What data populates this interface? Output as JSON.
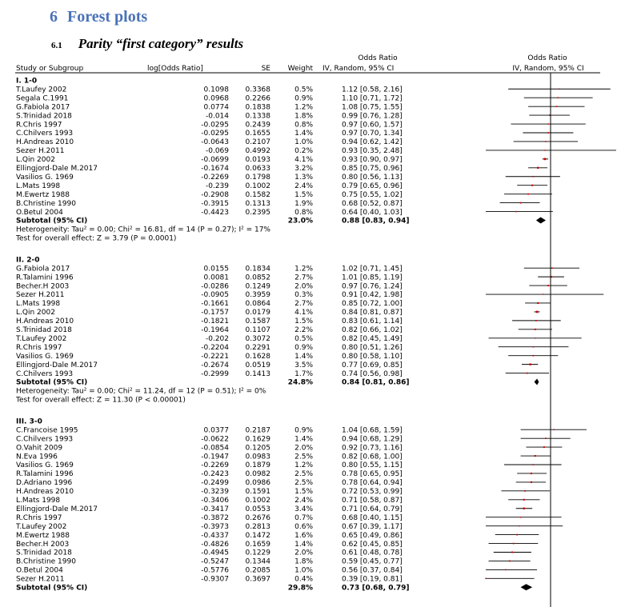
{
  "heading": {
    "number": "6",
    "title": "Forest plots"
  },
  "subheading": {
    "number": "6.1",
    "title": "Parity “first category” results"
  },
  "chart_data": {
    "type": "forest",
    "columns": {
      "study": "Study or Subgroup",
      "logor": "log[Odds Ratio]",
      "se": "SE",
      "weight": "Weight",
      "or_title": "Odds Ratio",
      "or_sub": "IV, Random, 95% CI",
      "plot_title": "Odds Ratio",
      "plot_sub": "IV, Random, 95% CI"
    },
    "groups": [
      {
        "label": "I. 1-0",
        "rows": [
          {
            "study": "T.Laufey 2002",
            "logor": "0.1098",
            "se": "0.3368",
            "weight": "0.5%",
            "ci": "1.12 [0.58, 2.16]",
            "or": 1.12,
            "lo": 0.58,
            "hi": 2.16
          },
          {
            "study": "Segala C.1991",
            "logor": "0.0968",
            "se": "0.2266",
            "weight": "0.9%",
            "ci": "1.10 [0.71, 1.72]",
            "or": 1.1,
            "lo": 0.71,
            "hi": 1.72
          },
          {
            "study": "G.Fabiola 2017",
            "logor": "0.0774",
            "se": "0.1838",
            "weight": "1.2%",
            "ci": "1.08 [0.75, 1.55]",
            "or": 1.08,
            "lo": 0.75,
            "hi": 1.55
          },
          {
            "study": "S.Trinidad 2018",
            "logor": "-0.014",
            "se": "0.1338",
            "weight": "1.8%",
            "ci": "0.99 [0.76, 1.28]",
            "or": 0.99,
            "lo": 0.76,
            "hi": 1.28
          },
          {
            "study": "R.Chris 1997",
            "logor": "-0.0295",
            "se": "0.2439",
            "weight": "0.8%",
            "ci": "0.97 [0.60, 1.57]",
            "or": 0.97,
            "lo": 0.6,
            "hi": 1.57
          },
          {
            "study": "C.Chilvers 1993",
            "logor": "-0.0295",
            "se": "0.1655",
            "weight": "1.4%",
            "ci": "0.97 [0.70, 1.34]",
            "or": 0.97,
            "lo": 0.7,
            "hi": 1.34
          },
          {
            "study": "H.Andreas 2010",
            "logor": "-0.0643",
            "se": "0.2107",
            "weight": "1.0%",
            "ci": "0.94 [0.62, 1.42]",
            "or": 0.94,
            "lo": 0.62,
            "hi": 1.42
          },
          {
            "study": "Sezer H.2011",
            "logor": "-0.069",
            "se": "0.4992",
            "weight": "0.2%",
            "ci": "0.93 [0.35, 2.48]",
            "or": 0.93,
            "lo": 0.35,
            "hi": 2.48
          },
          {
            "study": "L.Qin 2002",
            "logor": "-0.0699",
            "se": "0.0193",
            "weight": "4.1%",
            "ci": "0.93 [0.90, 0.97]",
            "or": 0.93,
            "lo": 0.9,
            "hi": 0.97
          },
          {
            "study": "Ellingjord-Dale M.2017",
            "logor": "-0.1674",
            "se": "0.0633",
            "weight": "3.2%",
            "ci": "0.85 [0.75, 0.96]",
            "or": 0.85,
            "lo": 0.75,
            "hi": 0.96
          },
          {
            "study": "Vasilios G. 1969",
            "logor": "-0.2269",
            "se": "0.1798",
            "weight": "1.3%",
            "ci": "0.80 [0.56, 1.13]",
            "or": 0.8,
            "lo": 0.56,
            "hi": 1.13
          },
          {
            "study": "L.Mats 1998",
            "logor": "-0.239",
            "se": "0.1002",
            "weight": "2.4%",
            "ci": "0.79 [0.65, 0.96]",
            "or": 0.79,
            "lo": 0.65,
            "hi": 0.96
          },
          {
            "study": "M.Ewertz 1988",
            "logor": "-0.2908",
            "se": "0.1582",
            "weight": "1.5%",
            "ci": "0.75 [0.55, 1.02]",
            "or": 0.75,
            "lo": 0.55,
            "hi": 1.02
          },
          {
            "study": "B.Christine 1990",
            "logor": "-0.3915",
            "se": "0.1313",
            "weight": "1.9%",
            "ci": "0.68 [0.52, 0.87]",
            "or": 0.68,
            "lo": 0.52,
            "hi": 0.87
          },
          {
            "study": "O.Betul 2004",
            "logor": "-0.4423",
            "se": "0.2395",
            "weight": "0.8%",
            "ci": "0.64 [0.40, 1.03]",
            "or": 0.64,
            "lo": 0.4,
            "hi": 1.03
          }
        ],
        "subtotal": {
          "label": "Subtotal (95% CI)",
          "weight": "23.0%",
          "ci": "0.88 [0.83, 0.94]",
          "or": 0.88,
          "lo": 0.83,
          "hi": 0.94
        },
        "heterogeneity": "Heterogeneity: Tau² = 0.00; Chi² = 16.81, df = 14 (P = 0.27); I² = 17%",
        "overall": "Test for overall effect: Z = 3.79 (P = 0.0001)"
      },
      {
        "label": "II. 2-0",
        "rows": [
          {
            "study": "G.Fabiola 2017",
            "logor": "0.0155",
            "se": "0.1834",
            "weight": "1.2%",
            "ci": "1.02 [0.71, 1.45]",
            "or": 1.02,
            "lo": 0.71,
            "hi": 1.45
          },
          {
            "study": "R.Talamini 1996",
            "logor": "0.0081",
            "se": "0.0852",
            "weight": "2.7%",
            "ci": "1.01 [0.85, 1.19]",
            "or": 1.01,
            "lo": 0.85,
            "hi": 1.19
          },
          {
            "study": "Becher.H 2003",
            "logor": "-0.0286",
            "se": "0.1249",
            "weight": "2.0%",
            "ci": "0.97 [0.76, 1.24]",
            "or": 0.97,
            "lo": 0.76,
            "hi": 1.24
          },
          {
            "study": "Sezer H.2011",
            "logor": "-0.0905",
            "se": "0.3959",
            "weight": "0.3%",
            "ci": "0.91 [0.42, 1.98]",
            "or": 0.91,
            "lo": 0.42,
            "hi": 1.98
          },
          {
            "study": "L.Mats 1998",
            "logor": "-0.1661",
            "se": "0.0864",
            "weight": "2.7%",
            "ci": "0.85 [0.72, 1.00]",
            "or": 0.85,
            "lo": 0.72,
            "hi": 1.0
          },
          {
            "study": "L.Qin 2002",
            "logor": "-0.1757",
            "se": "0.0179",
            "weight": "4.1%",
            "ci": "0.84 [0.81, 0.87]",
            "or": 0.84,
            "lo": 0.81,
            "hi": 0.87
          },
          {
            "study": "H.Andreas 2010",
            "logor": "-0.1821",
            "se": "0.1587",
            "weight": "1.5%",
            "ci": "0.83 [0.61, 1.14]",
            "or": 0.83,
            "lo": 0.61,
            "hi": 1.14
          },
          {
            "study": "S.Trinidad 2018",
            "logor": "-0.1964",
            "se": "0.1107",
            "weight": "2.2%",
            "ci": "0.82 [0.66, 1.02]",
            "or": 0.82,
            "lo": 0.66,
            "hi": 1.02
          },
          {
            "study": "T.Laufey 2002",
            "logor": "-0.202",
            "se": "0.3072",
            "weight": "0.5%",
            "ci": "0.82 [0.45, 1.49]",
            "or": 0.82,
            "lo": 0.45,
            "hi": 1.49
          },
          {
            "study": "R.Chris 1997",
            "logor": "-0.2204",
            "se": "0.2291",
            "weight": "0.9%",
            "ci": "0.80 [0.51, 1.26]",
            "or": 0.8,
            "lo": 0.51,
            "hi": 1.26
          },
          {
            "study": "Vasilios G. 1969",
            "logor": "-0.2221",
            "se": "0.1628",
            "weight": "1.4%",
            "ci": "0.80 [0.58, 1.10]",
            "or": 0.8,
            "lo": 0.58,
            "hi": 1.1
          },
          {
            "study": "Ellingjord-Dale M.2017",
            "logor": "-0.2674",
            "se": "0.0519",
            "weight": "3.5%",
            "ci": "0.77 [0.69, 0.85]",
            "or": 0.77,
            "lo": 0.69,
            "hi": 0.85
          },
          {
            "study": "C.Chilvers 1993",
            "logor": "-0.2999",
            "se": "0.1413",
            "weight": "1.7%",
            "ci": "0.74 [0.56, 0.98]",
            "or": 0.74,
            "lo": 0.56,
            "hi": 0.98
          }
        ],
        "subtotal": {
          "label": "Subtotal (95% CI)",
          "weight": "24.8%",
          "ci": "0.84 [0.81, 0.86]",
          "or": 0.84,
          "lo": 0.81,
          "hi": 0.86
        },
        "heterogeneity": "Heterogeneity: Tau² = 0.00; Chi² = 11.24, df = 12 (P = 0.51); I² = 0%",
        "overall": "Test for overall effect: Z = 11.30 (P < 0.00001)"
      },
      {
        "label": "III. 3-0",
        "rows": [
          {
            "study": "C.Francoise 1995",
            "logor": "0.0377",
            "se": "0.2187",
            "weight": "0.9%",
            "ci": "1.04 [0.68, 1.59]",
            "or": 1.04,
            "lo": 0.68,
            "hi": 1.59
          },
          {
            "study": "C.Chilvers 1993",
            "logor": "-0.0622",
            "se": "0.1629",
            "weight": "1.4%",
            "ci": "0.94 [0.68, 1.29]",
            "or": 0.94,
            "lo": 0.68,
            "hi": 1.29
          },
          {
            "study": "O.Vahit 2009",
            "logor": "-0.0854",
            "se": "0.1205",
            "weight": "2.0%",
            "ci": "0.92 [0.73, 1.16]",
            "or": 0.92,
            "lo": 0.73,
            "hi": 1.16
          },
          {
            "study": "N.Eva 1996",
            "logor": "-0.1947",
            "se": "0.0983",
            "weight": "2.5%",
            "ci": "0.82 [0.68, 1.00]",
            "or": 0.82,
            "lo": 0.68,
            "hi": 1.0
          },
          {
            "study": "Vasilios G. 1969",
            "logor": "-0.2269",
            "se": "0.1879",
            "weight": "1.2%",
            "ci": "0.80 [0.55, 1.15]",
            "or": 0.8,
            "lo": 0.55,
            "hi": 1.15
          },
          {
            "study": "R.Talamini 1996",
            "logor": "-0.2423",
            "se": "0.0982",
            "weight": "2.5%",
            "ci": "0.78 [0.65, 0.95]",
            "or": 0.78,
            "lo": 0.65,
            "hi": 0.95
          },
          {
            "study": "D.Adriano 1996",
            "logor": "-0.2499",
            "se": "0.0986",
            "weight": "2.5%",
            "ci": "0.78 [0.64, 0.94]",
            "or": 0.78,
            "lo": 0.64,
            "hi": 0.94
          },
          {
            "study": "H.Andreas 2010",
            "logor": "-0.3239",
            "se": "0.1591",
            "weight": "1.5%",
            "ci": "0.72 [0.53, 0.99]",
            "or": 0.72,
            "lo": 0.53,
            "hi": 0.99
          },
          {
            "study": "L.Mats 1998",
            "logor": "-0.3406",
            "se": "0.1002",
            "weight": "2.4%",
            "ci": "0.71 [0.58, 0.87]",
            "or": 0.71,
            "lo": 0.58,
            "hi": 0.87
          },
          {
            "study": "Ellingjord-Dale M.2017",
            "logor": "-0.3417",
            "se": "0.0553",
            "weight": "3.4%",
            "ci": "0.71 [0.64, 0.79]",
            "or": 0.71,
            "lo": 0.64,
            "hi": 0.79
          },
          {
            "study": "R.Chris 1997",
            "logor": "-0.3872",
            "se": "0.2676",
            "weight": "0.7%",
            "ci": "0.68 [0.40, 1.15]",
            "or": 0.68,
            "lo": 0.4,
            "hi": 1.15
          },
          {
            "study": "T.Laufey 2002",
            "logor": "-0.3973",
            "se": "0.2813",
            "weight": "0.6%",
            "ci": "0.67 [0.39, 1.17]",
            "or": 0.67,
            "lo": 0.39,
            "hi": 1.17
          },
          {
            "study": "M.Ewertz 1988",
            "logor": "-0.4337",
            "se": "0.1472",
            "weight": "1.6%",
            "ci": "0.65 [0.49, 0.86]",
            "or": 0.65,
            "lo": 0.49,
            "hi": 0.86
          },
          {
            "study": "Becher.H 2003",
            "logor": "-0.4826",
            "se": "0.1659",
            "weight": "1.4%",
            "ci": "0.62 [0.45, 0.85]",
            "or": 0.62,
            "lo": 0.45,
            "hi": 0.85
          },
          {
            "study": "S.Trinidad 2018",
            "logor": "-0.4945",
            "se": "0.1229",
            "weight": "2.0%",
            "ci": "0.61 [0.48, 0.78]",
            "or": 0.61,
            "lo": 0.48,
            "hi": 0.78
          },
          {
            "study": "B.Christine 1990",
            "logor": "-0.5247",
            "se": "0.1344",
            "weight": "1.8%",
            "ci": "0.59 [0.45, 0.77]",
            "or": 0.59,
            "lo": 0.45,
            "hi": 0.77
          },
          {
            "study": "O.Betul 2004",
            "logor": "-0.5776",
            "se": "0.2085",
            "weight": "1.0%",
            "ci": "0.56 [0.37, 0.84]",
            "or": 0.56,
            "lo": 0.37,
            "hi": 0.84
          },
          {
            "study": "Sezer H.2011",
            "logor": "-0.9307",
            "se": "0.3697",
            "weight": "0.4%",
            "ci": "0.39 [0.19, 0.81]",
            "or": 0.39,
            "lo": 0.19,
            "hi": 0.81
          }
        ],
        "subtotal": {
          "label": "Subtotal (95% CI)",
          "weight": "29.8%",
          "ci": "0.73 [0.68, 0.79]",
          "or": 0.73,
          "lo": 0.68,
          "hi": 0.79
        }
      }
    ],
    "x_scale": "log",
    "colors": {
      "mark": "#cc0000",
      "line": "#000000"
    }
  }
}
